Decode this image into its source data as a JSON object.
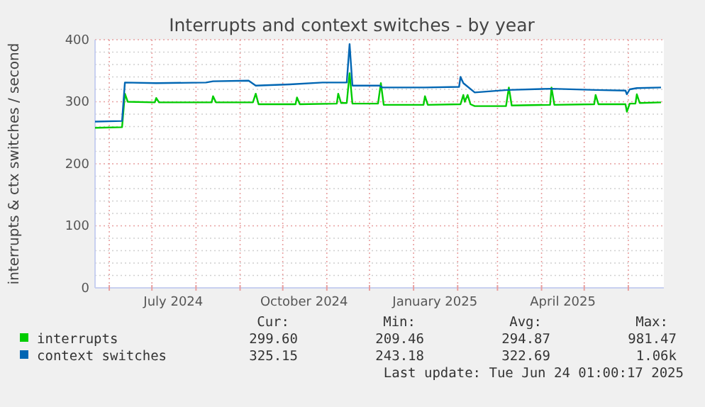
{
  "chart_data": {
    "type": "line",
    "title": "Interrupts and context switches - by year",
    "ylabel": "interrupts & ctx switches / second",
    "xlim": [
      "2024-05-22",
      "2025-06-26"
    ],
    "xticks": [
      {
        "value": "2024-06-01",
        "label": null
      },
      {
        "value": "2024-07-01",
        "label": null
      },
      {
        "value": "2024-07-16",
        "label": "July 2024"
      },
      {
        "value": "2024-08-01",
        "label": null
      },
      {
        "value": "2024-09-01",
        "label": null
      },
      {
        "value": "2024-10-01",
        "label": null
      },
      {
        "value": "2024-10-16",
        "label": "October 2024"
      },
      {
        "value": "2024-11-01",
        "label": null
      },
      {
        "value": "2024-12-01",
        "label": null
      },
      {
        "value": "2025-01-01",
        "label": null
      },
      {
        "value": "2025-01-16",
        "label": "January 2025"
      },
      {
        "value": "2025-02-01",
        "label": null
      },
      {
        "value": "2025-03-01",
        "label": null
      },
      {
        "value": "2025-04-01",
        "label": null
      },
      {
        "value": "2025-04-16",
        "label": "April 2025"
      },
      {
        "value": "2025-05-01",
        "label": null
      },
      {
        "value": "2025-06-01",
        "label": null
      }
    ],
    "ylim": [
      0,
      400
    ],
    "yticks": [
      0,
      {
        "value": 20,
        "label": null
      },
      {
        "value": 40,
        "label": null
      },
      {
        "value": 60,
        "label": null
      },
      {
        "value": 80,
        "label": null
      },
      100,
      {
        "value": 120,
        "label": null
      },
      {
        "value": 140,
        "label": null
      },
      {
        "value": 160,
        "label": null
      },
      {
        "value": 180,
        "label": null
      },
      200,
      {
        "value": 220,
        "label": null
      },
      {
        "value": 240,
        "label": null
      },
      {
        "value": 260,
        "label": null
      },
      {
        "value": 280,
        "label": null
      },
      300,
      {
        "value": 320,
        "label": null
      },
      {
        "value": 340,
        "label": null
      },
      {
        "value": 360,
        "label": null
      },
      {
        "value": 380,
        "label": null
      },
      400
    ],
    "grid": true,
    "legend": "bottom",
    "series": [
      {
        "name": "interrupts",
        "color": "#00cc00",
        "x": [
          "2024-05-22",
          "2024-06-10",
          "2024-06-12",
          "2024-06-14",
          "2024-07-03",
          "2024-07-04",
          "2024-07-06",
          "2024-08-12",
          "2024-08-13",
          "2024-08-15",
          "2024-09-10",
          "2024-09-12",
          "2024-09-14",
          "2024-10-10",
          "2024-10-11",
          "2024-10-13",
          "2024-11-08",
          "2024-11-09",
          "2024-11-11",
          "2024-11-15",
          "2024-11-17",
          "2024-11-19",
          "2024-12-07",
          "2024-12-09",
          "2024-12-11",
          "2025-01-08",
          "2025-01-09",
          "2025-01-11",
          "2025-02-03",
          "2025-02-05",
          "2025-02-06",
          "2025-02-08",
          "2025-02-10",
          "2025-02-13",
          "2025-03-07",
          "2025-03-09",
          "2025-03-11",
          "2025-04-07",
          "2025-04-08",
          "2025-04-10",
          "2025-05-08",
          "2025-05-09",
          "2025-05-11",
          "2025-05-30",
          "2025-05-31",
          "2025-06-02",
          "2025-06-06",
          "2025-06-07",
          "2025-06-09",
          "2025-06-24"
        ],
        "values": [
          258,
          259,
          313,
          300,
          299,
          306,
          299,
          299,
          309,
          299,
          299,
          313,
          296,
          296,
          307,
          296,
          297,
          313,
          298,
          298,
          346,
          297,
          297,
          330,
          295,
          295,
          309,
          295,
          296,
          311,
          300,
          311,
          296,
          293,
          293,
          323,
          294,
          295,
          323,
          295,
          296,
          311,
          296,
          296,
          284,
          297,
          297,
          312,
          298,
          299
        ]
      },
      {
        "name": "context switches",
        "color": "#0066b3",
        "x": [
          "2024-05-22",
          "2024-06-10",
          "2024-06-12",
          "2024-07-04",
          "2024-08-08",
          "2024-08-13",
          "2024-09-07",
          "2024-09-12",
          "2024-10-06",
          "2024-10-29",
          "2024-11-15",
          "2024-11-17",
          "2024-11-19",
          "2024-12-08",
          "2024-12-10",
          "2025-01-09",
          "2025-02-02",
          "2025-02-03",
          "2025-02-05",
          "2025-02-13",
          "2025-03-08",
          "2025-04-08",
          "2025-05-09",
          "2025-05-30",
          "2025-05-31",
          "2025-06-02",
          "2025-06-07",
          "2025-06-24"
        ],
        "values": [
          268,
          269,
          331,
          330,
          331,
          333,
          334,
          326,
          328,
          331,
          331,
          393,
          326,
          326,
          323,
          323,
          324,
          340,
          330,
          315,
          319,
          321,
          319,
          318,
          312,
          320,
          322,
          323
        ]
      }
    ],
    "annotations": [
      "Cur:",
      "Min:",
      "Avg:",
      "Max:",
      "299.60",
      "209.46",
      "294.87",
      "981.47",
      "325.15",
      "243.18",
      "322.69",
      "1.06k",
      "Last update: Tue Jun 24 01:00:17 2025"
    ]
  }
}
